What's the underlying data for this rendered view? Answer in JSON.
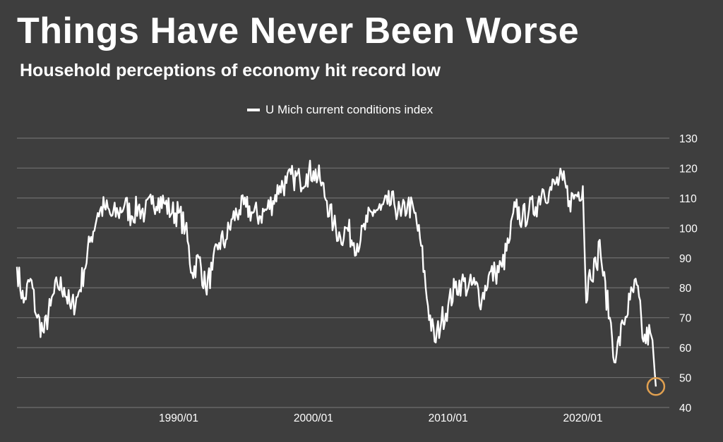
{
  "title": "Things Have Never Been Worse",
  "subtitle": "Household perceptions of economy hit record low",
  "colors": {
    "background": "#3e3e3e",
    "line": "#ffffff",
    "grid": "#6e6e6e",
    "highlight": "#e0a050"
  },
  "chart_data": {
    "type": "line",
    "title": "Things Have Never Been Worse",
    "subtitle": "Household perceptions of economy hit record low",
    "legend_position": "top-center",
    "grid": true,
    "y_axis_side": "right",
    "ylim": [
      40,
      130
    ],
    "yticks": [
      130,
      120,
      110,
      100,
      90,
      80,
      70,
      60,
      50,
      40
    ],
    "xlim": [
      "1978/01",
      "2026/06"
    ],
    "xticks": [
      "1990/01",
      "2000/01",
      "2010/01",
      "2020/01"
    ],
    "highlight": {
      "label": "record low",
      "x": "2025/06",
      "y": 47
    },
    "series": [
      {
        "name": "U Mich current conditions index",
        "points": [
          [
            "1978/01",
            87
          ],
          [
            "1978/07",
            75
          ],
          [
            "1979/01",
            83
          ],
          [
            "1979/07",
            70
          ],
          [
            "1980/01",
            65
          ],
          [
            "1980/07",
            74
          ],
          [
            "1981/01",
            81
          ],
          [
            "1981/07",
            80
          ],
          [
            "1982/01",
            73
          ],
          [
            "1982/07",
            77
          ],
          [
            "1983/01",
            86
          ],
          [
            "1983/07",
            97
          ],
          [
            "1984/01",
            105
          ],
          [
            "1984/07",
            107
          ],
          [
            "1985/01",
            104
          ],
          [
            "1985/07",
            105
          ],
          [
            "1986/01",
            108
          ],
          [
            "1986/07",
            104
          ],
          [
            "1987/01",
            107
          ],
          [
            "1987/07",
            105
          ],
          [
            "1988/01",
            108
          ],
          [
            "1988/07",
            110
          ],
          [
            "1989/01",
            108
          ],
          [
            "1989/07",
            105
          ],
          [
            "1990/01",
            105
          ],
          [
            "1990/07",
            100
          ],
          [
            "1991/01",
            85
          ],
          [
            "1991/07",
            90
          ],
          [
            "1992/01",
            80
          ],
          [
            "1992/07",
            86
          ],
          [
            "1993/01",
            95
          ],
          [
            "1993/07",
            96
          ],
          [
            "1994/01",
            103
          ],
          [
            "1994/07",
            106
          ],
          [
            "1995/01",
            107
          ],
          [
            "1995/07",
            105
          ],
          [
            "1996/01",
            104
          ],
          [
            "1996/07",
            106
          ],
          [
            "1997/01",
            109
          ],
          [
            "1997/07",
            114
          ],
          [
            "1998/01",
            115
          ],
          [
            "1998/07",
            117
          ],
          [
            "1999/01",
            116
          ],
          [
            "1999/07",
            118
          ],
          [
            "2000/01",
            119
          ],
          [
            "2000/07",
            116
          ],
          [
            "2001/01",
            109
          ],
          [
            "2001/07",
            101
          ],
          [
            "2002/01",
            97
          ],
          [
            "2002/07",
            100
          ],
          [
            "2003/01",
            95
          ],
          [
            "2003/07",
            96
          ],
          [
            "2004/01",
            102
          ],
          [
            "2004/07",
            106
          ],
          [
            "2005/01",
            106
          ],
          [
            "2005/07",
            108
          ],
          [
            "2006/01",
            108
          ],
          [
            "2006/07",
            104
          ],
          [
            "2007/01",
            108
          ],
          [
            "2007/07",
            105
          ],
          [
            "2008/01",
            94
          ],
          [
            "2008/07",
            74
          ],
          [
            "2009/01",
            62
          ],
          [
            "2009/07",
            69
          ],
          [
            "2010/01",
            74
          ],
          [
            "2010/07",
            80
          ],
          [
            "2011/01",
            82
          ],
          [
            "2011/07",
            80
          ],
          [
            "2012/01",
            81
          ],
          [
            "2012/07",
            76
          ],
          [
            "2013/01",
            84
          ],
          [
            "2013/07",
            85
          ],
          [
            "2014/01",
            87
          ],
          [
            "2014/07",
            95
          ],
          [
            "2015/01",
            107
          ],
          [
            "2015/07",
            103
          ],
          [
            "2016/01",
            106
          ],
          [
            "2016/07",
            107
          ],
          [
            "2017/01",
            113
          ],
          [
            "2017/07",
            112
          ],
          [
            "2018/01",
            115
          ],
          [
            "2018/07",
            116
          ],
          [
            "2019/01",
            109
          ],
          [
            "2019/07",
            111
          ],
          [
            "2020/01",
            114
          ],
          [
            "2020/04",
            75
          ],
          [
            "2020/07",
            86
          ],
          [
            "2021/01",
            87
          ],
          [
            "2021/04",
            96
          ],
          [
            "2021/07",
            84
          ],
          [
            "2022/01",
            70
          ],
          [
            "2022/06",
            55
          ],
          [
            "2022/07",
            58
          ],
          [
            "2023/01",
            68
          ],
          [
            "2023/07",
            76
          ],
          [
            "2024/01",
            81
          ],
          [
            "2024/07",
            62
          ],
          [
            "2025/01",
            65
          ],
          [
            "2025/04",
            57
          ],
          [
            "2025/06",
            47
          ]
        ]
      }
    ]
  }
}
